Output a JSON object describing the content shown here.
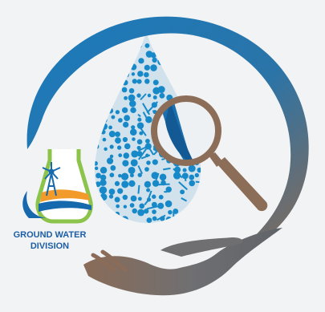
{
  "logo": {
    "text_line_1": "GROUND WATER",
    "text_line_2": "DIVISION",
    "icons": [
      "water-drop-network-icon",
      "magnifying-glass-icon",
      "hand-icon",
      "flask-icon",
      "windmill-icon"
    ],
    "colors": {
      "background": "#f2f3f4",
      "ring_blue": "#1a75b8",
      "ring_brown": "#8a6a55",
      "drop_blue": "#1789c8",
      "magnifier_brown": "#8b6d58",
      "lens_blue": "#1a6fae",
      "flask_green": "#8cc34a",
      "flask_blue": "#1769ad",
      "flask_orange": "#f29b2a",
      "text_blue": "#1c5ea6",
      "hand_gray": "#6c6f74"
    }
  }
}
